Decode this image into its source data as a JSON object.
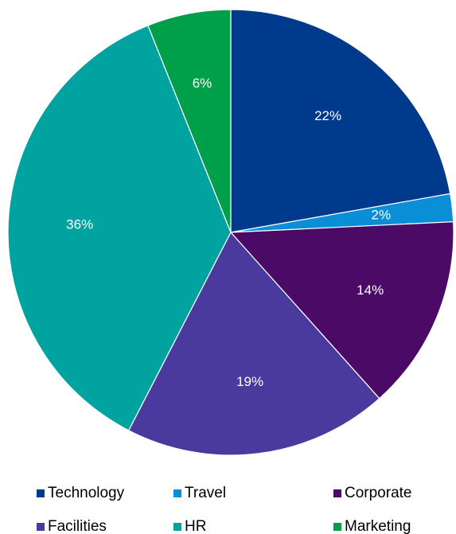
{
  "chart_data": {
    "type": "pie",
    "title": "",
    "start_angle_deg": 0,
    "direction": "clockwise",
    "legend_position": "bottom",
    "slices": [
      {
        "label": "Technology",
        "value": 22,
        "display": "22%",
        "color": "#003A8C"
      },
      {
        "label": "Travel",
        "value": 2,
        "display": "2%",
        "color": "#0A8FD6"
      },
      {
        "label": "Corporate",
        "value": 14,
        "display": "14%",
        "color": "#4A0A66"
      },
      {
        "label": "Facilities",
        "value": 19,
        "display": "19%",
        "color": "#4A3A9E"
      },
      {
        "label": "HR",
        "value": 36,
        "display": "36%",
        "color": "#00A3A0"
      },
      {
        "label": "Marketing",
        "value": 6,
        "display": "6%",
        "color": "#00A04A"
      }
    ]
  }
}
